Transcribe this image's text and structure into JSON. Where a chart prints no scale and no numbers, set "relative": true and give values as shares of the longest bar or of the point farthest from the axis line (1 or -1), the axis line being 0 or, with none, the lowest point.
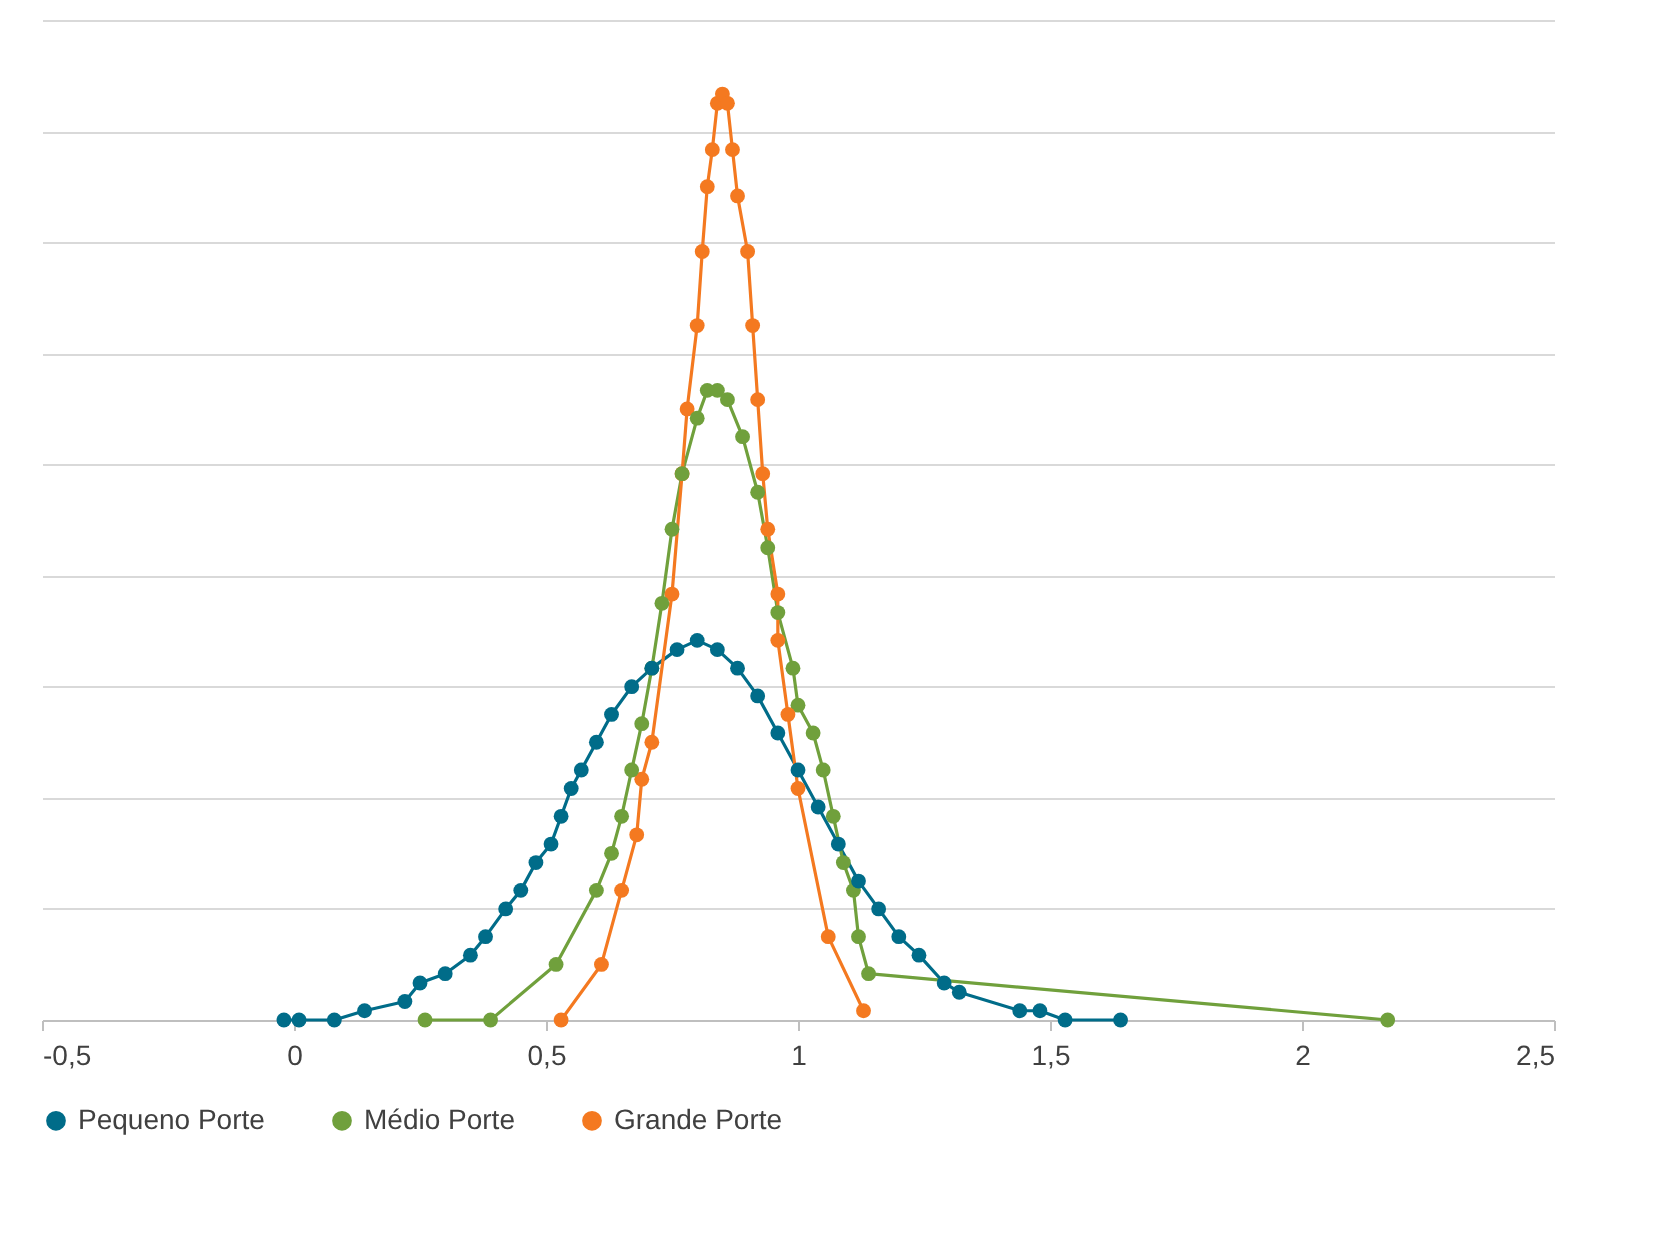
{
  "chart_data": {
    "type": "line",
    "relative": true,
    "marker": "circle",
    "line_style": "solid",
    "grid": "y",
    "legend": "bottom",
    "xlim": [
      -0.5,
      2.5
    ],
    "xticks": [
      {
        "value": -0.5,
        "label": "-0,5"
      },
      0,
      {
        "value": 0.5,
        "label": "0,5"
      },
      1,
      {
        "value": 1.5,
        "label": "1,5"
      },
      2,
      {
        "value": 2.5,
        "label": "2,5"
      }
    ],
    "series": [
      {
        "name": "Pequeno Porte",
        "color": "#006c89",
        "x": [
          -0.02,
          0.01,
          0.08,
          0.14,
          0.22,
          0.25,
          0.3,
          0.35,
          0.38,
          0.42,
          0.45,
          0.48,
          0.51,
          0.53,
          0.55,
          0.57,
          0.6,
          0.63,
          0.67,
          0.71,
          0.76,
          0.8,
          0.84,
          0.88,
          0.92,
          0.96,
          1.0,
          1.04,
          1.08,
          1.12,
          1.16,
          1.2,
          1.24,
          1.29,
          1.32,
          1.44,
          1.48,
          1.53,
          1.64
        ],
        "values": [
          0,
          0,
          0,
          0.01,
          0.02,
          0.04,
          0.05,
          0.07,
          0.09,
          0.12,
          0.14,
          0.17,
          0.19,
          0.22,
          0.25,
          0.27,
          0.3,
          0.33,
          0.36,
          0.38,
          0.4,
          0.41,
          0.4,
          0.38,
          0.35,
          0.31,
          0.27,
          0.23,
          0.19,
          0.15,
          0.12,
          0.09,
          0.07,
          0.04,
          0.03,
          0.01,
          0.01,
          0,
          0
        ]
      },
      {
        "name": "Médio Porte",
        "color": "#70a03c",
        "x": [
          0.26,
          0.39,
          0.52,
          0.6,
          0.63,
          0.65,
          0.67,
          0.69,
          0.71,
          0.73,
          0.75,
          0.77,
          0.8,
          0.82,
          0.84,
          0.86,
          0.89,
          0.92,
          0.94,
          0.96,
          0.99,
          1.0,
          1.03,
          1.05,
          1.07,
          1.09,
          1.11,
          1.12,
          1.14,
          2.17
        ],
        "values": [
          0,
          0,
          0.06,
          0.14,
          0.18,
          0.22,
          0.27,
          0.32,
          0.38,
          0.45,
          0.53,
          0.59,
          0.65,
          0.68,
          0.68,
          0.67,
          0.63,
          0.57,
          0.51,
          0.44,
          0.38,
          0.34,
          0.31,
          0.27,
          0.22,
          0.17,
          0.14,
          0.09,
          0.05,
          0
        ]
      },
      {
        "name": "Grande Porte",
        "color": "#f47920",
        "x": [
          0.53,
          0.61,
          0.65,
          0.68,
          0.69,
          0.71,
          0.75,
          0.77,
          0.78,
          0.8,
          0.81,
          0.82,
          0.83,
          0.84,
          0.85,
          0.86,
          0.87,
          0.88,
          0.9,
          0.91,
          0.92,
          0.93,
          0.94,
          0.96,
          0.96,
          0.98,
          1.0,
          1.06,
          1.13
        ],
        "values": [
          0,
          0.06,
          0.14,
          0.2,
          0.26,
          0.3,
          0.46,
          0.59,
          0.66,
          0.75,
          0.83,
          0.9,
          0.94,
          0.99,
          1,
          0.99,
          0.94,
          0.89,
          0.83,
          0.75,
          0.67,
          0.59,
          0.53,
          0.46,
          0.41,
          0.33,
          0.25,
          0.09,
          0.01
        ]
      }
    ]
  }
}
